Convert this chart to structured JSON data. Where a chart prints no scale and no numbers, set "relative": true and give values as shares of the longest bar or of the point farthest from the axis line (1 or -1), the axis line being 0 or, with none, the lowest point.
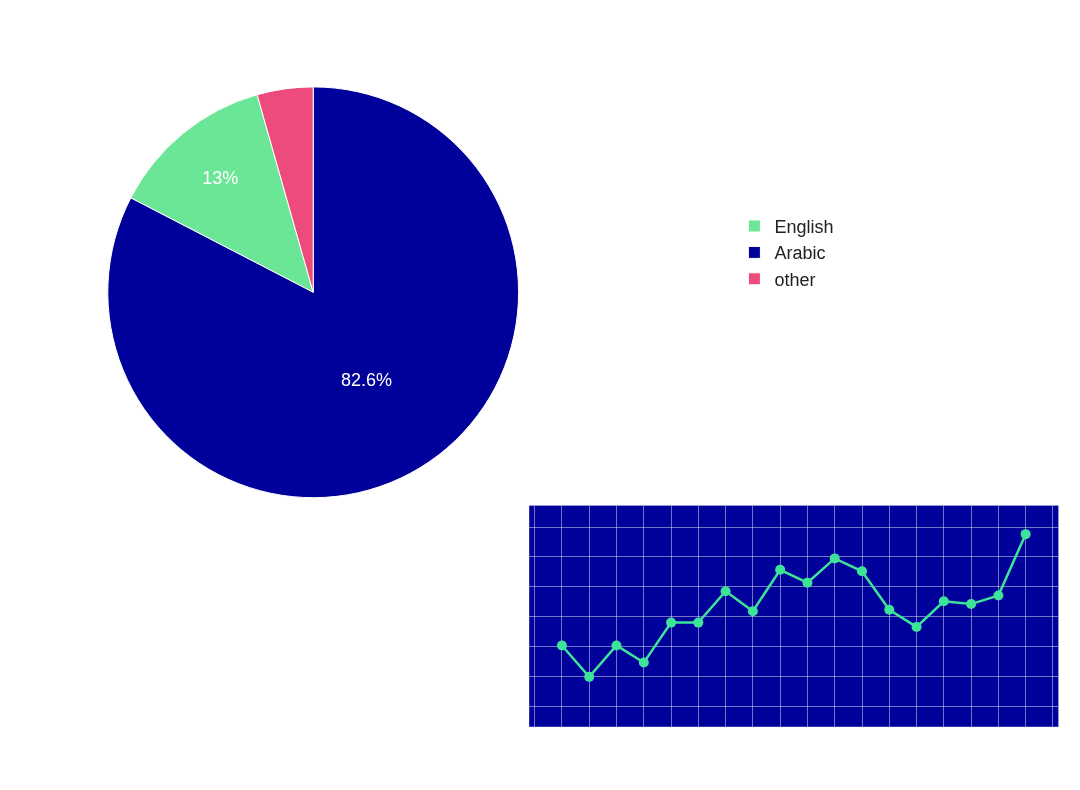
{
  "chart_data": [
    {
      "type": "pie",
      "categories": [
        "English",
        "Arabic",
        "other"
      ],
      "values": [
        13,
        82.6,
        4.4
      ],
      "colors": [
        "#6be596",
        "#00019a",
        "#ec4b7c"
      ],
      "value_labels": [
        "13%",
        "82.6%",
        null
      ],
      "legend": "right"
    },
    {
      "type": "line",
      "relative": true,
      "categories": [
        null,
        null,
        null,
        null,
        null,
        null,
        null,
        null,
        null,
        null,
        null,
        null,
        null,
        null,
        null,
        null,
        null,
        null
      ],
      "series": [
        {
          "color": "#3ee39a",
          "values": [
            0.22,
            0,
            0.22,
            0.1,
            0.38,
            0.38,
            0.6,
            0.46,
            0.75,
            0.66,
            0.83,
            0.74,
            0.47,
            0.35,
            0.53,
            0.51,
            0.57,
            1
          ]
        }
      ],
      "grid": true,
      "marker": "circle",
      "line_style": "solid",
      "tick_labels": false
    }
  ]
}
